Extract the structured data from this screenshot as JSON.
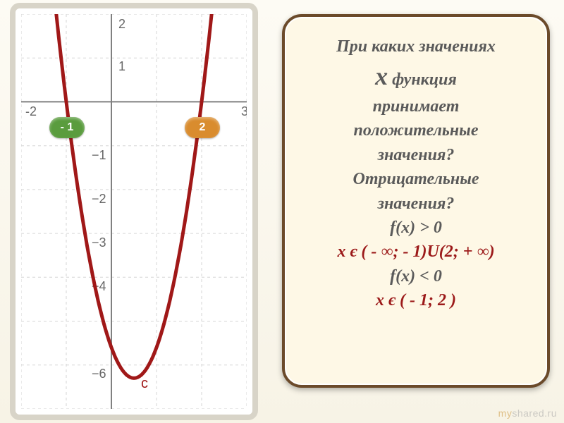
{
  "chart": {
    "type": "line",
    "background_color": "#ffffff",
    "grid_color": "#d6d6d6",
    "axis_color": "#808080",
    "tick_fontsize": 18,
    "tick_color": "#666666",
    "xlim": [
      -2,
      3
    ],
    "ylim": [
      -7,
      2
    ],
    "xtick_step": 1,
    "ytick_step": 1,
    "curve_color": "#a01818",
    "curve_width": 5,
    "curve_label": "c",
    "curve_label_color": "#a01818",
    "roots": [
      -1,
      2
    ],
    "vertex": [
      0.5,
      -6.3
    ],
    "highlight_bar_blue": "#5a88c4",
    "highlight_bar_olive": "#a99c4a",
    "marker_green": "#5a9c3e",
    "marker_orange": "#d98c2e",
    "marker_left_label": "- 1",
    "marker_right_label": "2"
  },
  "panel": {
    "background_color": "#fef8e6",
    "border_color": "#6b4a2a",
    "text_color": "#5a5a5a",
    "answer_color": "#9c1a1a",
    "line1": "При каких значениях",
    "x_var": "x",
    "line2a": "функция",
    "line2b": "принимает",
    "line2c": "положительные",
    "line2d": "значения?",
    "line3a": "Отрицательные",
    "line3b": "значения?",
    "cond1": "f(x) > 0",
    "ans1": "x є ( - ∞; - 1)U(2; + ∞)",
    "cond2": "f(x) < 0",
    "ans2": "x є ( - 1; 2 )"
  },
  "watermark": {
    "prefix": "my",
    "suffix": "shared.ru"
  }
}
